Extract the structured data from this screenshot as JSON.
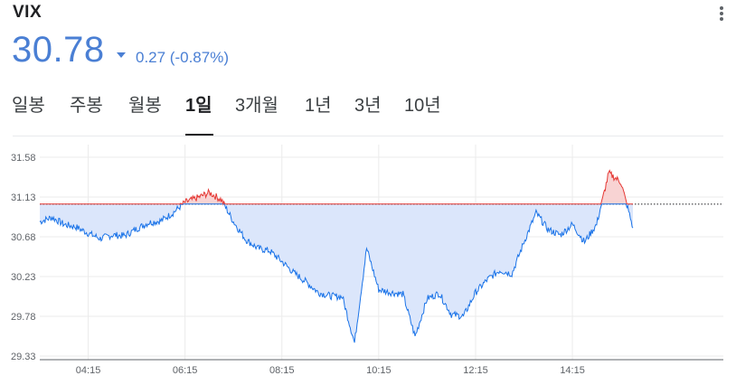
{
  "header": {
    "ticker": "VIX",
    "price": "30.78",
    "change": "0.27 (-0.87%)",
    "direction_icon": "triangle-down-icon",
    "accent_color": "#4a7fd4"
  },
  "tabs": [
    {
      "label": "일봉",
      "active": false
    },
    {
      "label": "주봉",
      "active": false
    },
    {
      "label": "월봉",
      "active": false
    },
    {
      "label": "1일",
      "active": true
    },
    {
      "label": "3개월",
      "active": false
    },
    {
      "label": "1년",
      "active": false
    },
    {
      "label": "3년",
      "active": false
    },
    {
      "label": "10년",
      "active": false
    }
  ],
  "chart_data": {
    "type": "area",
    "y_ticks": [
      "31.58",
      "31.13",
      "30.68",
      "30.23",
      "29.78",
      "29.33"
    ],
    "x_ticks": [
      "04:15",
      "06:15",
      "08:15",
      "10:15",
      "12:15",
      "14:15"
    ],
    "ylim": [
      29.33,
      31.58
    ],
    "baseline": 31.05,
    "x": [
      "03:15",
      "03:30",
      "03:45",
      "04:00",
      "04:15",
      "04:30",
      "04:45",
      "05:00",
      "05:15",
      "05:30",
      "05:45",
      "06:00",
      "06:15",
      "06:30",
      "06:45",
      "07:00",
      "07:15",
      "07:30",
      "07:45",
      "08:00",
      "08:15",
      "08:30",
      "08:45",
      "09:00",
      "09:15",
      "09:30",
      "09:45",
      "10:00",
      "10:15",
      "10:30",
      "10:45",
      "11:00",
      "11:15",
      "11:30",
      "11:45",
      "12:00",
      "12:15",
      "12:30",
      "12:45",
      "13:00",
      "13:15",
      "13:30",
      "13:45",
      "14:00",
      "14:15",
      "14:30",
      "14:45",
      "15:00",
      "15:15",
      "15:30"
    ],
    "series": [
      {
        "values": [
          30.85,
          30.9,
          30.82,
          30.79,
          30.72,
          30.66,
          30.7,
          30.69,
          30.77,
          30.84,
          30.86,
          30.95,
          31.07,
          31.12,
          31.18,
          31.1,
          30.85,
          30.65,
          30.55,
          30.52,
          30.4,
          30.27,
          30.17,
          30.05,
          30.01,
          30.0,
          29.48,
          30.55,
          30.08,
          30.05,
          30.03,
          29.55,
          29.98,
          30.04,
          29.8,
          29.78,
          30.05,
          30.2,
          30.3,
          30.26,
          30.62,
          30.95,
          30.76,
          30.7,
          30.82,
          30.62,
          30.82,
          31.4,
          31.3,
          30.78
        ],
        "up_color": "#e53935",
        "down_color": "#1a73e8"
      }
    ],
    "grid": true
  }
}
